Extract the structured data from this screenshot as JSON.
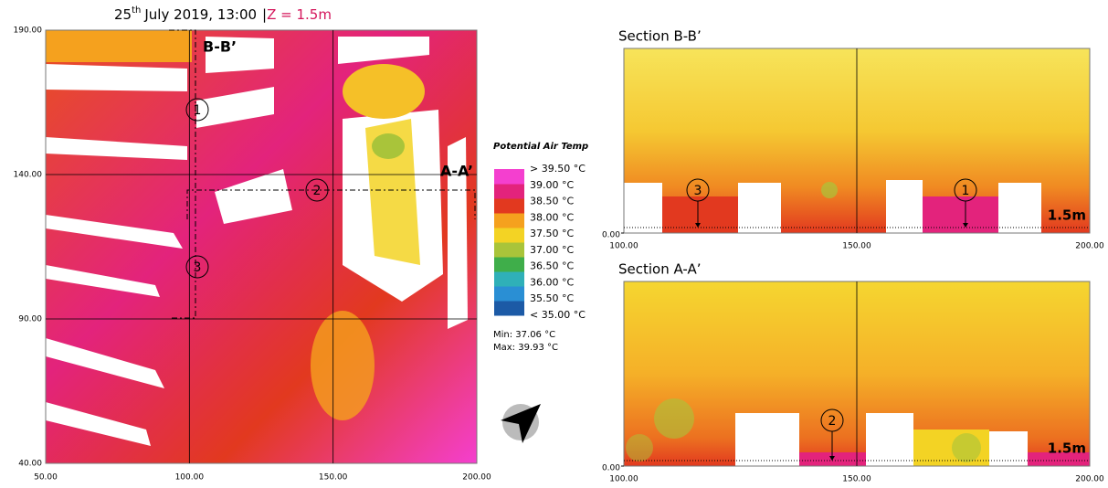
{
  "title": {
    "day": "25",
    "suffix": "th",
    "text": "July 2019, 13:00",
    "sep": "|",
    "height": "Z = 1.5m"
  },
  "map": {
    "xticks": [
      {
        "value": 50,
        "label": "50.00"
      },
      {
        "value": 100,
        "label": "100.00"
      },
      {
        "value": 150,
        "label": "150.00"
      },
      {
        "value": 200,
        "label": "200.00"
      }
    ],
    "yticks": [
      {
        "value": 40,
        "label": "40.00"
      },
      {
        "value": 90,
        "label": "90.00"
      },
      {
        "value": 140,
        "label": "140.00"
      },
      {
        "value": 190,
        "label": "190.00"
      }
    ],
    "label_bb": "B-B’",
    "label_aa": "A-A’",
    "markers": [
      "1",
      "2",
      "3"
    ]
  },
  "legend": {
    "title": "Potential Air Temp",
    "items": [
      {
        "label": "< 35.00 °C",
        "color": "#1c5aa6"
      },
      {
        "label": "35.50  °C",
        "color": "#2a8fd4"
      },
      {
        "label": "36.00  °C",
        "color": "#2fb0b8"
      },
      {
        "label": "36.50  °C",
        "color": "#3fae4a"
      },
      {
        "label": "37.00  °C",
        "color": "#a9c43a"
      },
      {
        "label": "37.50  °C",
        "color": "#f3d324"
      },
      {
        "label": "38.00  °C",
        "color": "#f5a11e"
      },
      {
        "label": "38.50  °C",
        "color": "#e2391f"
      },
      {
        "label": "39.00  °C",
        "color": "#e3237c"
      },
      {
        "label": "> 39.50 °C",
        "color": "#f43fcf"
      }
    ],
    "min": "Min: 37.06 °C",
    "max": "Max: 39.93 °C"
  },
  "sections": [
    {
      "title": "Section B-B’",
      "xticks": [
        {
          "value": 100,
          "label": "100.00"
        },
        {
          "value": 150,
          "label": "150.00"
        },
        {
          "value": 200,
          "label": "200.00"
        }
      ],
      "yticks": [
        {
          "value": 0,
          "label": "0.00"
        }
      ],
      "markers": [
        "3",
        "1"
      ],
      "height_label": "1.5m"
    },
    {
      "title": "Section A-A’",
      "xticks": [
        {
          "value": 100,
          "label": "100.00"
        },
        {
          "value": 150,
          "label": "150.00"
        },
        {
          "value": 200,
          "label": "200.00"
        }
      ],
      "yticks": [
        {
          "value": 0,
          "label": "0.00"
        }
      ],
      "markers": [
        "2"
      ],
      "height_label": "1.5m"
    }
  ]
}
